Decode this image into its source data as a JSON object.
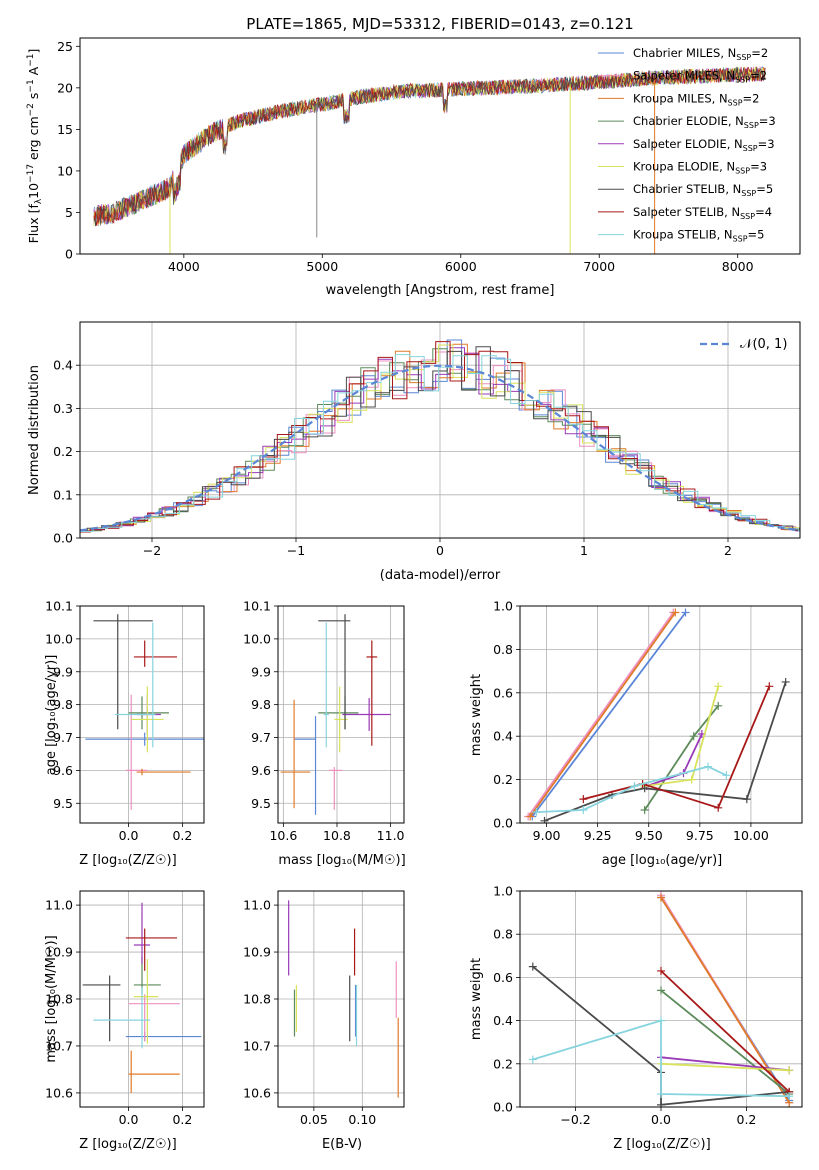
{
  "figure_title": "PLATE=1865, MJD=53312, FIBERID=0143, z=0.121",
  "model_colors": [
    "#5b86d6",
    "#ee8fc0",
    "#e07a28",
    "#5c8a5a",
    "#9a3ab8",
    "#d8e25a",
    "#4a4a4a",
    "#a81818",
    "#86d4de"
  ],
  "chart_data": [
    {
      "id": "spectrum",
      "type": "line",
      "title": "PLATE=1865, MJD=53312, FIBERID=0143, z=0.121",
      "xlabel": "wavelength [Angstrom, rest frame]",
      "ylabel_main": "Flux [f",
      "ylabel_sub": "λ",
      "ylabel_rest": "10",
      "ylabel_exp": "−17",
      "ylabel_tail": " erg cm",
      "ylabel_exp2": "−2",
      "ylabel_tail2": " s",
      "ylabel_exp3": "−1",
      "ylabel_tail3": " A",
      "ylabel_exp4": "−1",
      "ylabel_end": "]",
      "xlim": [
        3250,
        8450
      ],
      "ylim": [
        0,
        26
      ],
      "xticks": [
        4000,
        5000,
        6000,
        7000,
        8000
      ],
      "yticks": [
        0,
        5,
        10,
        15,
        20,
        25
      ],
      "grid": false,
      "legend_position": "right",
      "legend": [
        {
          "label": "Chabrier MILES, N",
          "sub": "SSP",
          "tail": "=2"
        },
        {
          "label": "Salpeter MILES, N",
          "sub": "SSP",
          "tail": "=2"
        },
        {
          "label": "Kroupa MILES, N",
          "sub": "SSP",
          "tail": "=2"
        },
        {
          "label": "Chabrier ELODIE, N",
          "sub": "SSP",
          "tail": "=3"
        },
        {
          "label": "Salpeter ELODIE, N",
          "sub": "SSP",
          "tail": "=3"
        },
        {
          "label": "Kroupa ELODIE, N",
          "sub": "SSP",
          "tail": "=3"
        },
        {
          "label": "Chabrier STELIB, N",
          "sub": "SSP",
          "tail": "=5"
        },
        {
          "label": "Salpeter STELIB, N",
          "sub": "SSP",
          "tail": "=4"
        },
        {
          "label": "Kroupa STELIB, N",
          "sub": "SSP",
          "tail": "=5"
        }
      ],
      "continuum_x": [
        3350,
        3500,
        3700,
        3900,
        4000,
        4200,
        4400,
        4600,
        4800,
        5000,
        5300,
        5600,
        5900,
        6200,
        6500,
        6800,
        7100,
        7400,
        7700,
        8000,
        8200
      ],
      "continuum_y": [
        4.5,
        5.0,
        6.5,
        8.0,
        12.0,
        14.5,
        16.0,
        16.8,
        17.5,
        18.0,
        19.0,
        19.6,
        19.8,
        20.0,
        20.2,
        20.5,
        20.8,
        21.2,
        21.4,
        21.6,
        21.7
      ],
      "spike_lines": [
        {
          "x": 4960,
          "y_low": 2.0
        },
        {
          "x": 3900,
          "y_low": 0
        },
        {
          "x": 6790,
          "y_low": 0
        },
        {
          "x": 7400,
          "y_low": 0
        }
      ]
    },
    {
      "id": "residuals",
      "type": "step",
      "xlabel": "(data-model)/error",
      "ylabel": "Normed distribution",
      "xlim": [
        -2.5,
        2.5
      ],
      "ylim": [
        0,
        0.5
      ],
      "xticks": [
        -2,
        -1,
        0,
        1,
        2
      ],
      "xtick_labels": [
        "−2",
        "−1",
        "0",
        "1",
        "2"
      ],
      "yticks": [
        0.0,
        0.1,
        0.2,
        0.3,
        0.4
      ],
      "ytick_labels": [
        "0.0",
        "0.1",
        "0.2",
        "0.3",
        "0.4"
      ],
      "grid": true,
      "legend_position": "top-right",
      "reference_label": "𝒩(0, 1)",
      "bin_width": 0.1
    },
    {
      "id": "age-vs-z",
      "type": "errorbar",
      "xlabel": "Z [log₁₀(Z/Z☉)]",
      "ylabel": "age  [log₁₀(age/yr)]",
      "xlim": [
        -0.18,
        0.28
      ],
      "ylim": [
        9.44,
        10.1
      ],
      "xticks": [
        0.0,
        0.2
      ],
      "xtick_labels": [
        "0.0",
        "0.2"
      ],
      "yticks": [
        9.5,
        9.6,
        9.7,
        9.8,
        9.9,
        10.0,
        10.1
      ],
      "ytick_labels": [
        "9.5",
        "9.6",
        "9.7",
        "9.8",
        "9.9",
        "10.0",
        "10.1"
      ],
      "grid": true,
      "points": [
        {
          "x": 0.06,
          "y": 9.695,
          "xerr": [
            0.22,
            0.26
          ],
          "yerr": [
            0.02,
            0.02
          ]
        },
        {
          "x": 0.01,
          "y": 9.6,
          "xerr": [
            0.02,
            0.06
          ],
          "yerr": [
            0.12,
            0.23
          ]
        },
        {
          "x": 0.05,
          "y": 9.595,
          "xerr": [
            0.02,
            0.18
          ],
          "yerr": [
            0.01,
            0.01
          ]
        },
        {
          "x": 0.05,
          "y": 9.775,
          "xerr": [
            0.05,
            0.1
          ],
          "yerr": [
            0.05,
            0.05
          ]
        },
        {
          "x": 0.07,
          "y": 9.77,
          "xerr": [
            0.04,
            0.05
          ],
          "yerr": [
            0.06,
            0.06
          ]
        },
        {
          "x": 0.07,
          "y": 9.755,
          "xerr": [
            0.06,
            0.06
          ],
          "yerr": [
            0.1,
            0.1
          ]
        },
        {
          "x": -0.04,
          "y": 10.055,
          "xerr": [
            0.09,
            0.13
          ],
          "yerr": [
            0.33,
            0.02
          ]
        },
        {
          "x": 0.06,
          "y": 9.945,
          "xerr": [
            0.04,
            0.12
          ],
          "yerr": [
            0.03,
            0.05
          ]
        },
        {
          "x": 0.09,
          "y": 9.77,
          "xerr": [
            0.14,
            0.01
          ],
          "yerr": [
            0.1,
            0.28
          ]
        }
      ]
    },
    {
      "id": "age-vs-mass",
      "type": "errorbar",
      "xlabel": "mass [log₁₀(M/M☉)]",
      "ylabel": "",
      "xlim": [
        10.58,
        11.05
      ],
      "ylim": [
        9.44,
        10.1
      ],
      "xticks": [
        10.6,
        10.8,
        11.0
      ],
      "xtick_labels": [
        "10.6",
        "10.8",
        "11.0"
      ],
      "yticks": [
        9.5,
        9.6,
        9.7,
        9.8,
        9.9,
        10.0,
        10.1
      ],
      "ytick_labels": [
        "9.5",
        "9.6",
        "9.7",
        "9.8",
        "9.9",
        "10.0",
        "10.1"
      ],
      "grid": true,
      "points": [
        {
          "x": 10.72,
          "y": 9.695,
          "xerr": [
            0.08,
            0.0
          ],
          "yerr": [
            0.23,
            0.07
          ]
        },
        {
          "x": 10.79,
          "y": 9.6,
          "xerr": [
            0.02,
            0.03
          ],
          "yerr": [
            0.12,
            0.01
          ]
        },
        {
          "x": 10.64,
          "y": 9.595,
          "xerr": [
            0.05,
            0.06
          ],
          "yerr": [
            0.11,
            0.22
          ]
        },
        {
          "x": 10.83,
          "y": 9.775,
          "xerr": [
            0.1,
            0.05
          ],
          "yerr": [
            0.05,
            0.05
          ]
        },
        {
          "x": 10.92,
          "y": 9.77,
          "xerr": [
            0.1,
            0.08
          ],
          "yerr": [
            0.05,
            0.05
          ]
        },
        {
          "x": 10.81,
          "y": 9.755,
          "xerr": [
            0.02,
            0.03
          ],
          "yerr": [
            0.1,
            0.1
          ]
        },
        {
          "x": 10.83,
          "y": 10.055,
          "xerr": [
            0.1,
            0.02
          ],
          "yerr": [
            0.33,
            0.02
          ]
        },
        {
          "x": 10.93,
          "y": 9.945,
          "xerr": [
            0.02,
            0.02
          ],
          "yerr": [
            0.27,
            0.05
          ]
        },
        {
          "x": 10.76,
          "y": 9.77,
          "xerr": [
            0.01,
            0.01
          ],
          "yerr": [
            0.1,
            0.28
          ]
        }
      ]
    },
    {
      "id": "weight-vs-age",
      "type": "line",
      "xlabel": "age  [log₁₀(age/yr)]",
      "ylabel": "mass weight",
      "xlim": [
        8.87,
        10.25
      ],
      "ylim": [
        0,
        1
      ],
      "xticks": [
        9.0,
        9.25,
        9.5,
        9.75,
        10.0
      ],
      "xtick_labels": [
        "9.00",
        "9.25",
        "9.50",
        "9.75",
        "10.00"
      ],
      "yticks": [
        0.0,
        0.2,
        0.4,
        0.6,
        0.8,
        1.0
      ],
      "ytick_labels": [
        "0.0",
        "0.2",
        "0.4",
        "0.6",
        "0.8",
        "1.0"
      ],
      "grid": true,
      "series": [
        {
          "x": [
            8.93,
            9.68
          ],
          "y": [
            0.03,
            0.97
          ]
        },
        {
          "x": [
            8.91,
            9.62
          ],
          "y": [
            0.03,
            0.97
          ]
        },
        {
          "x": [
            8.92,
            9.63
          ],
          "y": [
            0.03,
            0.97
          ]
        },
        {
          "x": [
            9.48,
            9.72,
            9.84
          ],
          "y": [
            0.06,
            0.4,
            0.54
          ]
        },
        {
          "x": [
            9.49,
            9.67,
            9.76
          ],
          "y": [
            0.17,
            0.23,
            0.41
          ]
        },
        {
          "x": [
            9.48,
            9.71,
            9.84
          ],
          "y": [
            0.17,
            0.2,
            0.63
          ]
        },
        {
          "x": [
            8.99,
            9.32,
            9.48,
            9.98,
            10.17
          ],
          "y": [
            0.01,
            0.13,
            0.16,
            0.11,
            0.65
          ]
        },
        {
          "x": [
            9.18,
            9.47,
            9.84,
            10.09
          ],
          "y": [
            0.11,
            0.18,
            0.07,
            0.63
          ]
        },
        {
          "x": [
            8.95,
            9.18,
            9.43,
            9.79,
            9.88
          ],
          "y": [
            0.05,
            0.06,
            0.17,
            0.26,
            0.22
          ]
        }
      ]
    },
    {
      "id": "mass-vs-z",
      "type": "errorbar",
      "xlabel": "Z [log₁₀(Z/Z☉)]",
      "ylabel": "mass [log₁₀(M/M☉)]",
      "xlim": [
        -0.18,
        0.28
      ],
      "ylim": [
        10.57,
        11.03
      ],
      "xticks": [
        0.0,
        0.2
      ],
      "xtick_labels": [
        "0.0",
        "0.2"
      ],
      "yticks": [
        10.6,
        10.7,
        10.8,
        10.9,
        11.0
      ],
      "ytick_labels": [
        "10.6",
        "10.7",
        "10.8",
        "10.9",
        "11.0"
      ],
      "grid": true,
      "points": [
        {
          "x": 0.06,
          "y": 10.72,
          "xerr": [
            0.07,
            0.21
          ],
          "yerr": [
            0.01,
            0.01
          ]
        },
        {
          "x": 0.06,
          "y": 10.79,
          "xerr": [
            0.06,
            0.13
          ],
          "yerr": [
            0.08,
            0.02
          ]
        },
        {
          "x": 0.01,
          "y": 10.64,
          "xerr": [
            0.01,
            0.18
          ],
          "yerr": [
            0.04,
            0.05
          ]
        },
        {
          "x": 0.05,
          "y": 10.83,
          "xerr": [
            0.03,
            0.07
          ],
          "yerr": [
            0.02,
            0.06
          ]
        },
        {
          "x": 0.05,
          "y": 10.915,
          "xerr": [
            0.03,
            0.03
          ],
          "yerr": [
            0.04,
            0.09
          ]
        },
        {
          "x": 0.07,
          "y": 10.805,
          "xerr": [
            0.05,
            0.04
          ],
          "yerr": [
            0.1,
            0.08
          ]
        },
        {
          "x": -0.07,
          "y": 10.83,
          "xerr": [
            0.1,
            0.04
          ],
          "yerr": [
            0.12,
            0.02
          ]
        },
        {
          "x": 0.06,
          "y": 10.93,
          "xerr": [
            0.07,
            0.12
          ],
          "yerr": [
            0.07,
            0.02
          ]
        },
        {
          "x": 0.05,
          "y": 10.755,
          "xerr": [
            0.18,
            0.03
          ],
          "yerr": [
            0.06,
            0.07
          ]
        }
      ]
    },
    {
      "id": "mass-vs-ebv",
      "type": "errorbar",
      "xlabel": "E(B-V)",
      "ylabel": "",
      "xlim": [
        0.013,
        0.143
      ],
      "ylim": [
        10.57,
        11.03
      ],
      "xticks": [
        0.05,
        0.1
      ],
      "xtick_labels": [
        "0.05",
        "0.10"
      ],
      "yticks": [
        10.6,
        10.7,
        10.8,
        10.9,
        11.0
      ],
      "ytick_labels": [
        "10.6",
        "10.7",
        "10.8",
        "10.9",
        "11.0"
      ],
      "grid": true,
      "points": [
        {
          "x": 0.093,
          "y": 10.78,
          "xerr": [
            0,
            0
          ],
          "yerr": [
            0.06,
            0.05
          ]
        },
        {
          "x": 0.135,
          "y": 10.79,
          "xerr": [
            0,
            0
          ],
          "yerr": [
            0.03,
            0.09
          ]
        },
        {
          "x": 0.137,
          "y": 10.68,
          "xerr": [
            0,
            0
          ],
          "yerr": [
            0.09,
            0.08
          ]
        },
        {
          "x": 0.03,
          "y": 10.77,
          "xerr": [
            0,
            0
          ],
          "yerr": [
            0.05,
            0.05
          ]
        },
        {
          "x": 0.024,
          "y": 10.92,
          "xerr": [
            0,
            0
          ],
          "yerr": [
            0.07,
            0.09
          ]
        },
        {
          "x": 0.032,
          "y": 10.78,
          "xerr": [
            0,
            0
          ],
          "yerr": [
            0.05,
            0.05
          ]
        },
        {
          "x": 0.087,
          "y": 10.78,
          "xerr": [
            0,
            0
          ],
          "yerr": [
            0.07,
            0.07
          ]
        },
        {
          "x": 0.092,
          "y": 10.89,
          "xerr": [
            0,
            0
          ],
          "yerr": [
            0.04,
            0.06
          ]
        },
        {
          "x": 0.094,
          "y": 10.75,
          "xerr": [
            0,
            0
          ],
          "yerr": [
            0.05,
            0.08
          ]
        }
      ]
    },
    {
      "id": "weight-vs-z",
      "type": "line",
      "xlabel": "Z [log₁₀(Z/Z☉)]",
      "ylabel": "mass weight",
      "xlim": [
        -0.33,
        0.33
      ],
      "ylim": [
        0,
        1
      ],
      "xticks": [
        -0.2,
        0.0,
        0.2
      ],
      "xtick_labels": [
        "−0.2",
        "0.0",
        "0.2"
      ],
      "yticks": [
        0.0,
        0.2,
        0.4,
        0.6,
        0.8,
        1.0
      ],
      "ytick_labels": [
        "0.0",
        "0.2",
        "0.4",
        "0.6",
        "0.8",
        "1.0"
      ],
      "grid": true,
      "series": [
        {
          "x": [
            0.0,
            0.3
          ],
          "y": [
            0.97,
            0.03
          ]
        },
        {
          "x": [
            0.0,
            0.3
          ],
          "y": [
            0.98,
            0.02
          ]
        },
        {
          "x": [
            0.0,
            0.3
          ],
          "y": [
            0.97,
            0.02
          ]
        },
        {
          "x": [
            0.0,
            0.3
          ],
          "y": [
            0.54,
            0.06
          ]
        },
        {
          "x": [
            0.0,
            0.3
          ],
          "y": [
            0.23,
            0.17
          ]
        },
        {
          "x": [
            0.0,
            0.3
          ],
          "y": [
            0.2,
            0.17
          ]
        },
        {
          "x": [
            -0.3,
            0.0,
            0.0,
            0.3
          ],
          "y": [
            0.65,
            0.16,
            0.01,
            0.07
          ]
        },
        {
          "x": [
            0.0,
            0.3
          ],
          "y": [
            0.63,
            0.07
          ]
        },
        {
          "x": [
            -0.3,
            0.0,
            0.0,
            0.3
          ],
          "y": [
            0.22,
            0.4,
            0.06,
            0.05
          ]
        }
      ]
    }
  ]
}
